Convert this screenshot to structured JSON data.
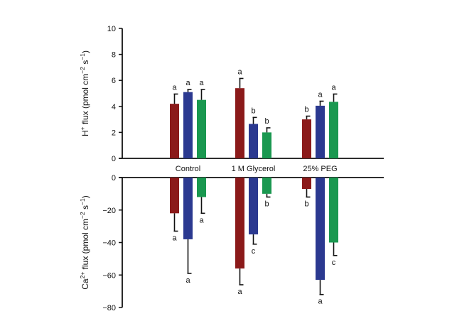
{
  "chart_data": [
    {
      "type": "bar",
      "panel": "top",
      "categories": [
        "Control",
        "1 M Glycerol",
        "25% PEG"
      ],
      "ylabel": {
        "base": "H",
        "sup1": "+",
        "mid": " flux (pmol cm",
        "sup2": "−2",
        "mid2": " s",
        "sup3": "−1",
        "end": ")"
      },
      "ylim": [
        0,
        10
      ],
      "yticks": [
        "0",
        "2",
        "4",
        "6",
        "8",
        "10"
      ],
      "yticks_values": [
        0,
        2,
        4,
        6,
        8,
        10
      ],
      "series": [
        {
          "color": "#8b1a1a",
          "values": [
            4.2,
            5.4,
            3.0
          ],
          "errors": [
            0.75,
            0.75,
            0.25
          ],
          "sig": [
            "a",
            "a",
            "b"
          ]
        },
        {
          "color": "#2b3990",
          "values": [
            5.1,
            2.65,
            4.05
          ],
          "errors": [
            0.2,
            0.5,
            0.35
          ],
          "sig": [
            "a",
            "b",
            "a"
          ]
        },
        {
          "color": "#1a9850",
          "values": [
            4.5,
            2.0,
            4.35
          ],
          "errors": [
            0.8,
            0.35,
            0.6
          ],
          "sig": [
            "a",
            "b",
            "a"
          ]
        }
      ]
    },
    {
      "type": "bar",
      "panel": "bottom",
      "categories": [
        "Control",
        "1 M Glycerol",
        "25% PEG"
      ],
      "ylabel": {
        "base": "Ca",
        "sup1": "2+",
        "mid": " flux (pmol cm",
        "sup2": "−2",
        "mid2": " s",
        "sup3": "−1",
        "end": ")"
      },
      "ylim": [
        -80,
        0
      ],
      "yticks": [
        "0",
        "−20",
        "−40",
        "−60",
        "−80"
      ],
      "yticks_values": [
        0,
        -20,
        -40,
        -60,
        -80
      ],
      "series": [
        {
          "color": "#8b1a1a",
          "values": [
            -22,
            -56,
            -7
          ],
          "errors": [
            11,
            10,
            5
          ],
          "sig": [
            "a",
            "a",
            "b"
          ]
        },
        {
          "color": "#2b3990",
          "values": [
            -38,
            -35,
            -63
          ],
          "errors": [
            21,
            6,
            9
          ],
          "sig": [
            "a",
            "c",
            "a"
          ]
        },
        {
          "color": "#1a9850",
          "values": [
            -12,
            -10,
            -40
          ],
          "errors": [
            10,
            2,
            8
          ],
          "sig": [
            "a",
            "b",
            "c"
          ]
        }
      ]
    }
  ]
}
